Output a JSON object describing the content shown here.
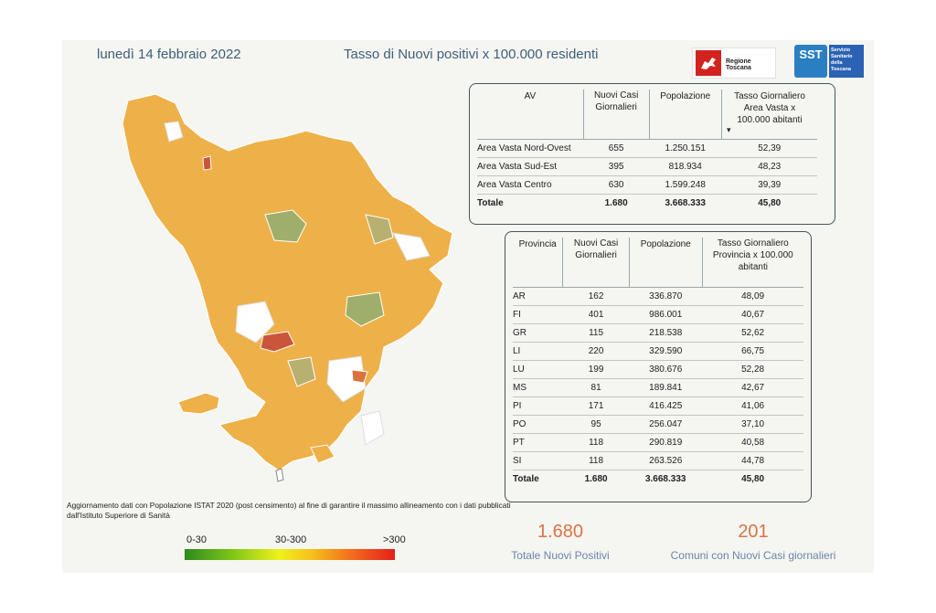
{
  "header": {
    "date": "lunedì 14 febbraio 2022",
    "title": "Tasso di Nuovi positivi x 100.000 residenti",
    "logo_regione_text": "Regione Toscana",
    "logo_sst_mark": "SST",
    "logo_sst_text": "Servizio Sanitario della Toscana"
  },
  "av_table": {
    "headers": [
      "AV",
      "Nuovi Casi Giornalieri",
      "Popolazione",
      "Tasso Giornaliero Area Vasta x 100.000 abitanti"
    ],
    "sort_indicator": "▾",
    "rows": [
      {
        "name": "Area Vasta Nord-Ovest",
        "cases": "655",
        "pop": "1.250.151",
        "rate": "52,39"
      },
      {
        "name": "Area Vasta Sud-Est",
        "cases": "395",
        "pop": "818.934",
        "rate": "48,23"
      },
      {
        "name": "Area Vasta Centro",
        "cases": "630",
        "pop": "1.599.248",
        "rate": "39,39"
      }
    ],
    "total": {
      "name": "Totale",
      "cases": "1.680",
      "pop": "3.668.333",
      "rate": "45,80"
    }
  },
  "prov_table": {
    "headers": [
      "Provincia",
      "Nuovi Casi Giornalieri",
      "Popolazione",
      "Tasso Giornaliero Provincia x 100.000 abitanti"
    ],
    "rows": [
      {
        "name": "AR",
        "cases": "162",
        "pop": "336.870",
        "rate": "48,09"
      },
      {
        "name": "FI",
        "cases": "401",
        "pop": "986.001",
        "rate": "40,67"
      },
      {
        "name": "GR",
        "cases": "115",
        "pop": "218.538",
        "rate": "52,62"
      },
      {
        "name": "LI",
        "cases": "220",
        "pop": "329.590",
        "rate": "66,75"
      },
      {
        "name": "LU",
        "cases": "199",
        "pop": "380.676",
        "rate": "52,28"
      },
      {
        "name": "MS",
        "cases": "81",
        "pop": "189.841",
        "rate": "42,67"
      },
      {
        "name": "PI",
        "cases": "171",
        "pop": "416.425",
        "rate": "41,06"
      },
      {
        "name": "PO",
        "cases": "95",
        "pop": "256.047",
        "rate": "37,10"
      },
      {
        "name": "PT",
        "cases": "118",
        "pop": "290.819",
        "rate": "40,58"
      },
      {
        "name": "SI",
        "cases": "118",
        "pop": "263.526",
        "rate": "44,78"
      }
    ],
    "total": {
      "name": "Totale",
      "cases": "1.680",
      "pop": "3.668.333",
      "rate": "45,80"
    }
  },
  "note": "Aggiornamento dati con Popolazione ISTAT 2020 (post censimento) al fine di garantire il massimo allineamento con i dati pubblicati dall'Istituto Superiore di Sanità",
  "legend": {
    "low": "0-30",
    "mid": "30-300",
    "high": ">300"
  },
  "kpi": {
    "total_value": "1.680",
    "total_label": "Totale Nuovi Positivi",
    "comuni_value": "201",
    "comuni_label": "Comuni con Nuovi Casi giornalieri"
  },
  "colors": {
    "accent_orange": "#d87447",
    "title_blue": "#3f5f7a",
    "label_blue": "#6b86a8",
    "map_fill": "#eeb048",
    "map_low": "#9fae6a",
    "map_high": "#c9553a"
  }
}
